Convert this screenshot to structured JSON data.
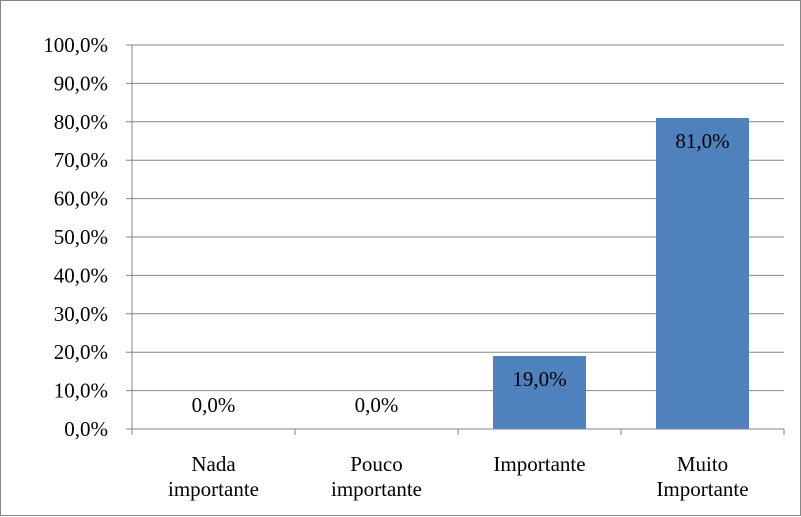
{
  "chart_data": {
    "type": "bar",
    "categories": [
      [
        "Nada",
        "importante"
      ],
      [
        "Pouco",
        "importante"
      ],
      [
        "Importante"
      ],
      [
        "Muito",
        "Importante"
      ]
    ],
    "values": [
      0.0,
      0.0,
      19.0,
      81.0
    ],
    "data_labels": [
      "0,0%",
      "0,0%",
      "19,0%",
      "81,0%"
    ],
    "ylim": [
      0,
      100
    ],
    "yticks": [
      {
        "value": 0,
        "label": "0,0%"
      },
      {
        "value": 10,
        "label": "10,0%"
      },
      {
        "value": 20,
        "label": "20,0%"
      },
      {
        "value": 30,
        "label": "30,0%"
      },
      {
        "value": 40,
        "label": "40,0%"
      },
      {
        "value": 50,
        "label": "50,0%"
      },
      {
        "value": 60,
        "label": "60,0%"
      },
      {
        "value": 70,
        "label": "70,0%"
      },
      {
        "value": 80,
        "label": "80,0%"
      },
      {
        "value": 90,
        "label": "90,0%"
      },
      {
        "value": 100,
        "label": "100,0%"
      }
    ],
    "grid": true,
    "legend": "none",
    "colors": {
      "bar": "#4F81BD",
      "grid": "#868686",
      "axis": "#868686",
      "frame": "#868686"
    }
  }
}
